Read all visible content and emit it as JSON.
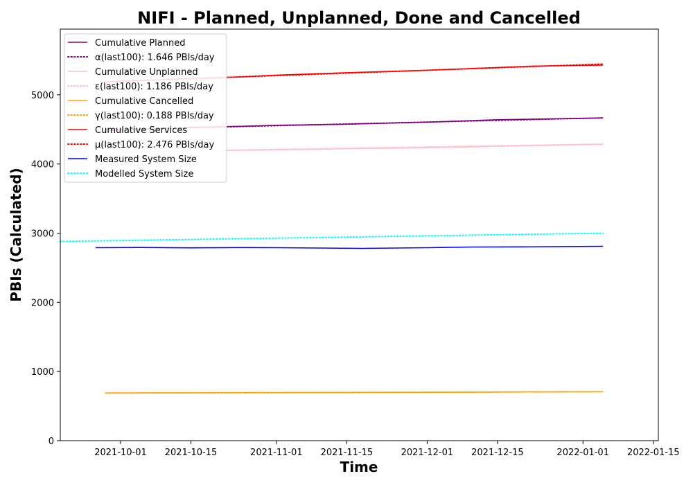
{
  "chart_data": {
    "type": "line",
    "title": "NIFI - Planned, Unplanned, Done  and Cancelled",
    "xlabel": "Time",
    "ylabel": "PBIs (Calculated)",
    "xlim": [
      "2021-09-19",
      "2022-01-16"
    ],
    "ylim": [
      0,
      5950
    ],
    "x_ticks": [
      "2021-10-01",
      "2021-10-15",
      "2021-11-01",
      "2021-11-15",
      "2021-12-01",
      "2021-12-15",
      "2022-01-01",
      "2022-01-15"
    ],
    "y_ticks": [
      0,
      1000,
      2000,
      3000,
      4000,
      5000
    ],
    "grid": false,
    "legend_position": "upper-left",
    "series": [
      {
        "name": "Cumulative Planned",
        "color": "#800080",
        "style": "solid",
        "x": [
          "2021-09-28",
          "2021-10-15",
          "2021-10-25",
          "2021-11-01",
          "2021-11-15",
          "2021-12-01",
          "2021-12-15",
          "2022-01-05"
        ],
        "values": [
          4480,
          4530,
          4545,
          4560,
          4575,
          4605,
          4640,
          4665
        ]
      },
      {
        "name": "α(last100): 1.646 PBIs/day",
        "color": "#800080",
        "style": "dotted",
        "x": [
          "2021-09-28",
          "2022-01-05"
        ],
        "values": [
          4495,
          4667
        ]
      },
      {
        "name": "Cumulative Unplanned",
        "color": "#ffc0cb",
        "style": "solid",
        "x": [
          "2021-09-28",
          "2021-10-15",
          "2021-11-01",
          "2021-11-15",
          "2021-12-01",
          "2021-12-15",
          "2022-01-05"
        ],
        "values": [
          4165,
          4190,
          4205,
          4220,
          4235,
          4255,
          4285
        ]
      },
      {
        "name": "ε(last100): 1.186 PBIs/day",
        "color": "#ffc0cb",
        "style": "dotted",
        "x": [
          "2021-09-28",
          "2022-01-05"
        ],
        "values": [
          4170,
          4288
        ]
      },
      {
        "name": "Cumulative Cancelled",
        "color": "#ffa500",
        "style": "solid",
        "x": [
          "2021-09-28",
          "2021-11-01",
          "2021-12-01",
          "2022-01-05"
        ],
        "values": [
          688,
          693,
          698,
          708
        ]
      },
      {
        "name": "γ(last100): 0.188 PBIs/day",
        "color": "#ffa500",
        "style": "dotted",
        "x": [
          "2021-09-28",
          "2022-01-05"
        ],
        "values": [
          689,
          707
        ]
      },
      {
        "name": "Cumulative Services",
        "color": "#ff0000",
        "style": "solid",
        "x": [
          "2021-09-28",
          "2021-10-15",
          "2021-10-25",
          "2021-11-01",
          "2021-11-15",
          "2021-12-01",
          "2021-12-15",
          "2021-12-22",
          "2022-01-05"
        ],
        "values": [
          5185,
          5235,
          5260,
          5285,
          5320,
          5355,
          5395,
          5415,
          5430
        ]
      },
      {
        "name": "μ(last100): 2.476 PBIs/day",
        "color": "#ff0000",
        "style": "dotted",
        "x": [
          "2021-09-28",
          "2022-01-05"
        ],
        "values": [
          5190,
          5445
        ]
      },
      {
        "name": "Measured System Size",
        "color": "#0000ff",
        "style": "solid",
        "x": [
          "2021-09-26",
          "2021-10-05",
          "2021-10-15",
          "2021-10-25",
          "2021-11-01",
          "2021-11-10",
          "2021-11-18",
          "2021-12-01",
          "2021-12-10",
          "2021-12-20",
          "2022-01-05"
        ],
        "values": [
          2790,
          2793,
          2788,
          2792,
          2790,
          2785,
          2780,
          2790,
          2800,
          2802,
          2810
        ]
      },
      {
        "name": "Modelled System Size",
        "color": "#00ffff",
        "style": "dotted",
        "x": [
          "2021-09-19",
          "2022-01-05"
        ],
        "values": [
          2880,
          3000
        ]
      }
    ]
  }
}
